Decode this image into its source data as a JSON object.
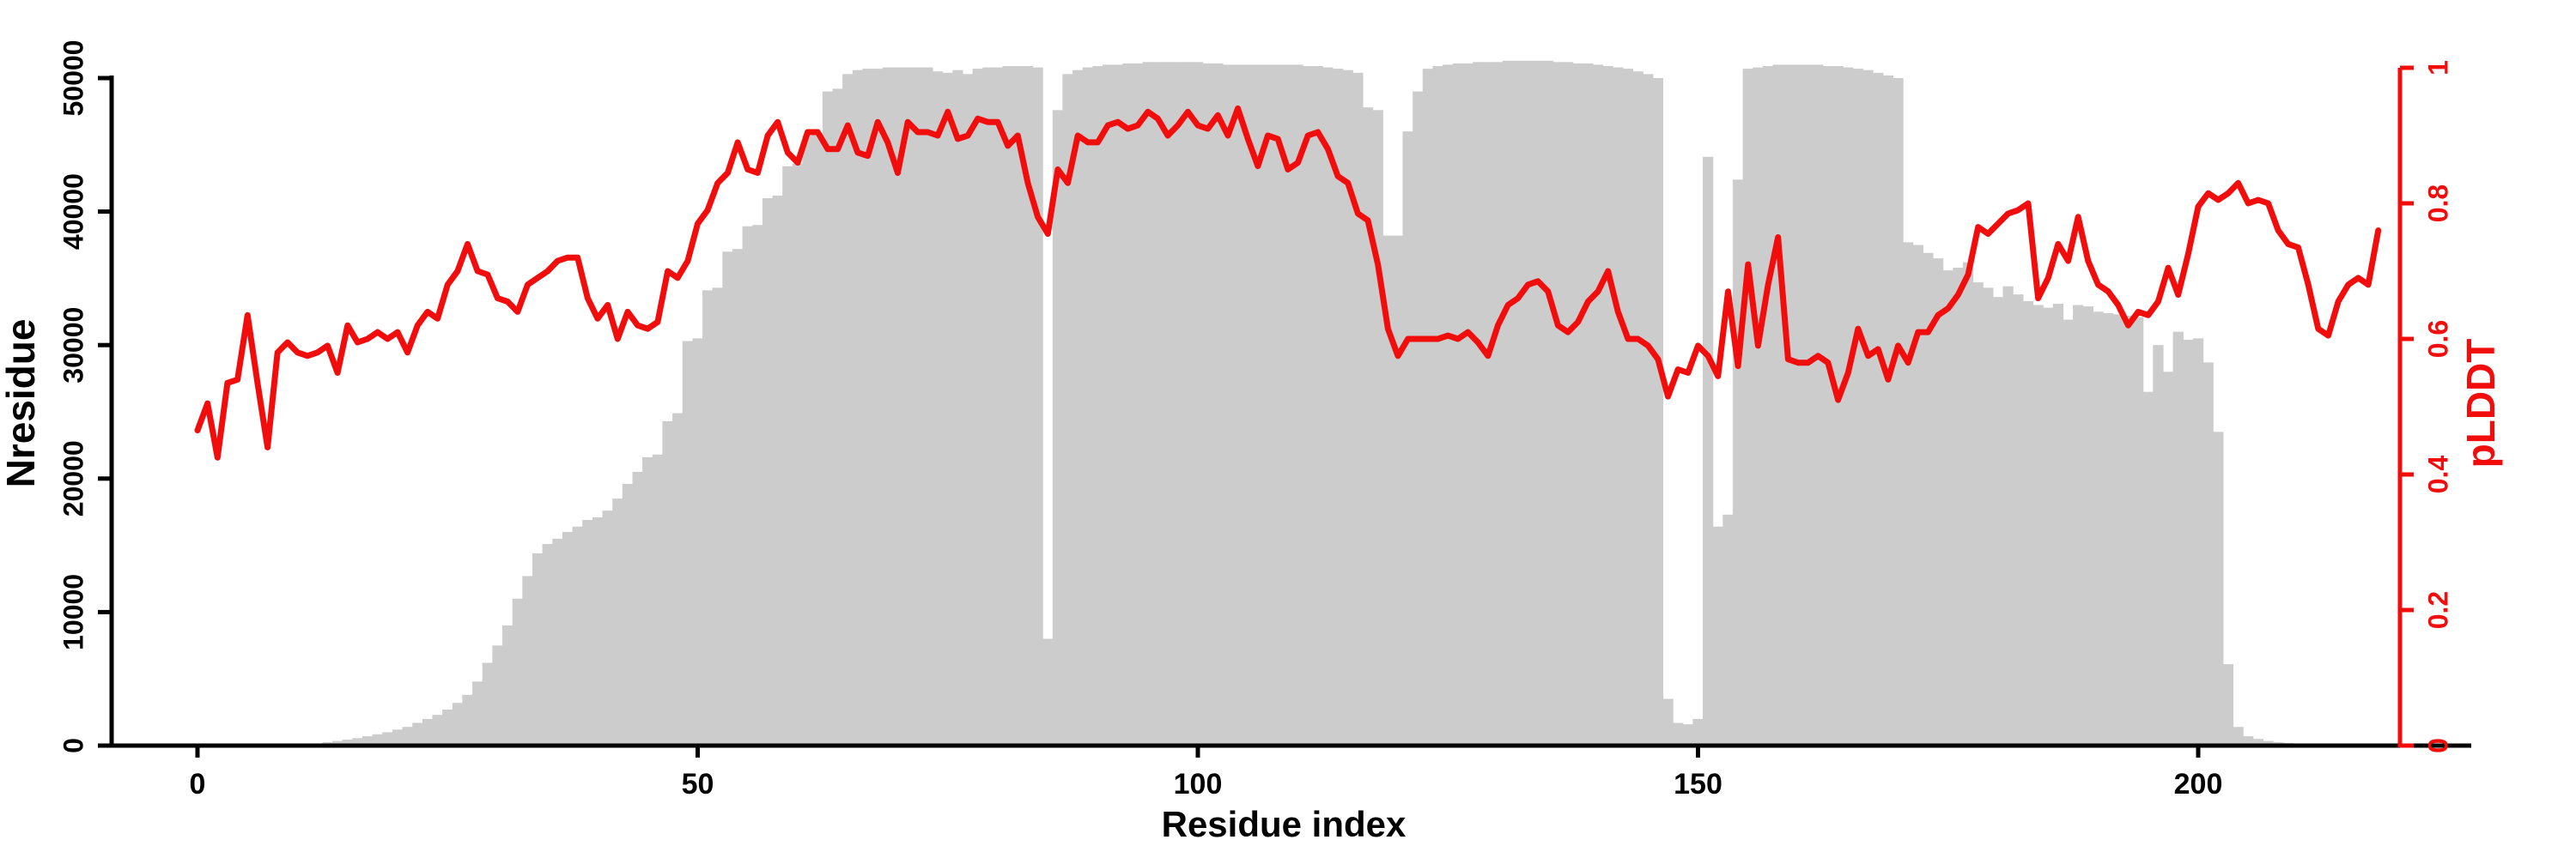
{
  "figure": {
    "background": "#ffffff",
    "axis_color": "#000000",
    "accent_color": "#f20d0d",
    "bar_color": "#cccccc"
  },
  "chart_data": {
    "type": "bar",
    "title": "",
    "xlabel": "Residue index",
    "ylabel_left": "Nresidue",
    "ylabel_right": "pLDDT",
    "x_range": [
      0,
      220
    ],
    "grid": false,
    "legend": "none",
    "x_ticks": [
      {
        "value": 0,
        "label": "0"
      },
      {
        "value": 50,
        "label": "50"
      },
      {
        "value": 100,
        "label": "100"
      },
      {
        "value": 150,
        "label": "150"
      },
      {
        "value": 200,
        "label": "200"
      }
    ],
    "left_axis": {
      "label": "Nresidue",
      "range": [
        0,
        50000
      ],
      "color": "#000000",
      "ticks": [
        {
          "value": 0,
          "label": "0"
        },
        {
          "value": 10000,
          "label": "10000"
        },
        {
          "value": 20000,
          "label": "20000"
        },
        {
          "value": 30000,
          "label": "30000"
        },
        {
          "value": 40000,
          "label": "40000"
        },
        {
          "value": 50000,
          "label": "50000"
        }
      ]
    },
    "right_axis": {
      "label": "pLDDT",
      "range": [
        0,
        1
      ],
      "color": "#f20d0d",
      "ticks": [
        {
          "value": 0,
          "label": "0"
        },
        {
          "value": 0.2,
          "label": "0.2"
        },
        {
          "value": 0.4,
          "label": "0.4"
        },
        {
          "value": 0.6,
          "label": "0.6"
        },
        {
          "value": 0.8,
          "label": "0.8"
        },
        {
          "value": 1,
          "label": "1"
        }
      ]
    },
    "series": [
      {
        "name": "Nresidue",
        "type": "bar",
        "axis": "left",
        "color": "#cccccc",
        "x_start": 0,
        "values": [
          0,
          0,
          0,
          0,
          0,
          0,
          0,
          50,
          50,
          80,
          100,
          120,
          160,
          250,
          350,
          450,
          550,
          700,
          850,
          1000,
          1200,
          1400,
          1700,
          2000,
          2300,
          2700,
          3200,
          3800,
          4800,
          6200,
          7500,
          9000,
          11000,
          12700,
          14400,
          15100,
          15500,
          16000,
          16400,
          16900,
          17100,
          17600,
          18500,
          19600,
          20500,
          21600,
          21800,
          24300,
          24900,
          30300,
          30500,
          34100,
          34300,
          37000,
          37200,
          38900,
          39000,
          41000,
          41200,
          43400,
          43600,
          45700,
          45900,
          49000,
          49200,
          50300,
          50600,
          50700,
          50700,
          50800,
          50800,
          50800,
          50800,
          50800,
          50500,
          50400,
          50600,
          50300,
          50700,
          50800,
          50800,
          50900,
          50900,
          50900,
          50800,
          8000,
          47600,
          50300,
          50600,
          50800,
          50900,
          51000,
          51000,
          51100,
          51100,
          51200,
          51200,
          51200,
          51200,
          51200,
          51200,
          51100,
          51100,
          51000,
          51000,
          51000,
          51000,
          51000,
          51000,
          51000,
          51000,
          50900,
          50900,
          50800,
          50700,
          50600,
          50400,
          47800,
          47600,
          38200,
          38200,
          46000,
          49000,
          50700,
          50900,
          51000,
          51100,
          51100,
          51200,
          51200,
          51200,
          51300,
          51300,
          51300,
          51300,
          51300,
          51200,
          51200,
          51100,
          51100,
          51000,
          50900,
          50800,
          50700,
          50500,
          50300,
          50000,
          3500,
          1700,
          1600,
          2000,
          44100,
          16400,
          17300,
          42400,
          50700,
          50800,
          50900,
          51000,
          51000,
          51000,
          51000,
          51000,
          50900,
          50900,
          50800,
          50700,
          50600,
          50400,
          50200,
          50000,
          37700,
          37500,
          36900,
          36500,
          35600,
          35800,
          36200,
          34700,
          34300,
          33600,
          34400,
          33800,
          33300,
          33000,
          32800,
          33100,
          31900,
          33000,
          32900,
          32500,
          32400,
          32300,
          32200,
          32100,
          26500,
          30000,
          28000,
          31000,
          30400,
          30500,
          28700,
          23500,
          6100,
          1400,
          700,
          500,
          350,
          250,
          200,
          150,
          120,
          100,
          80,
          60,
          50,
          50,
          50,
          0,
          0,
          0
        ]
      },
      {
        "name": "pLDDT",
        "type": "line",
        "axis": "right",
        "color": "#f20d0d",
        "x_start": 0,
        "values": [
          0.465,
          0.505,
          0.425,
          0.535,
          0.54,
          0.635,
          0.535,
          0.44,
          0.58,
          0.595,
          0.58,
          0.575,
          0.58,
          0.59,
          0.55,
          0.62,
          0.595,
          0.6,
          0.61,
          0.6,
          0.61,
          0.58,
          0.62,
          0.64,
          0.63,
          0.68,
          0.7,
          0.74,
          0.7,
          0.695,
          0.66,
          0.655,
          0.64,
          0.68,
          0.69,
          0.7,
          0.715,
          0.72,
          0.72,
          0.66,
          0.63,
          0.65,
          0.6,
          0.64,
          0.62,
          0.615,
          0.625,
          0.7,
          0.69,
          0.715,
          0.77,
          0.79,
          0.83,
          0.845,
          0.89,
          0.85,
          0.845,
          0.9,
          0.92,
          0.875,
          0.86,
          0.905,
          0.905,
          0.88,
          0.88,
          0.915,
          0.875,
          0.87,
          0.92,
          0.89,
          0.845,
          0.92,
          0.905,
          0.905,
          0.9,
          0.935,
          0.895,
          0.9,
          0.925,
          0.92,
          0.92,
          0.885,
          0.9,
          0.83,
          0.78,
          0.755,
          0.85,
          0.83,
          0.9,
          0.89,
          0.89,
          0.915,
          0.92,
          0.91,
          0.915,
          0.935,
          0.925,
          0.9,
          0.915,
          0.935,
          0.915,
          0.91,
          0.93,
          0.9,
          0.94,
          0.895,
          0.855,
          0.9,
          0.895,
          0.85,
          0.86,
          0.9,
          0.905,
          0.88,
          0.84,
          0.83,
          0.785,
          0.775,
          0.71,
          0.615,
          0.575,
          0.6,
          0.6,
          0.6,
          0.6,
          0.605,
          0.6,
          0.61,
          0.595,
          0.575,
          0.62,
          0.65,
          0.66,
          0.68,
          0.685,
          0.67,
          0.62,
          0.61,
          0.625,
          0.655,
          0.67,
          0.7,
          0.64,
          0.6,
          0.6,
          0.59,
          0.57,
          0.515,
          0.555,
          0.55,
          0.59,
          0.575,
          0.545,
          0.67,
          0.56,
          0.71,
          0.59,
          0.68,
          0.75,
          0.57,
          0.565,
          0.565,
          0.575,
          0.565,
          0.51,
          0.55,
          0.615,
          0.575,
          0.585,
          0.54,
          0.59,
          0.565,
          0.61,
          0.61,
          0.635,
          0.645,
          0.665,
          0.695,
          0.765,
          0.755,
          0.77,
          0.785,
          0.79,
          0.8,
          0.66,
          0.69,
          0.74,
          0.715,
          0.78,
          0.715,
          0.68,
          0.67,
          0.65,
          0.62,
          0.64,
          0.635,
          0.655,
          0.705,
          0.665,
          0.725,
          0.795,
          0.815,
          0.805,
          0.815,
          0.83,
          0.8,
          0.805,
          0.8,
          0.76,
          0.74,
          0.735,
          0.68,
          0.615,
          0.605,
          0.655,
          0.68,
          0.69,
          0.68,
          0.76
        ]
      }
    ]
  }
}
